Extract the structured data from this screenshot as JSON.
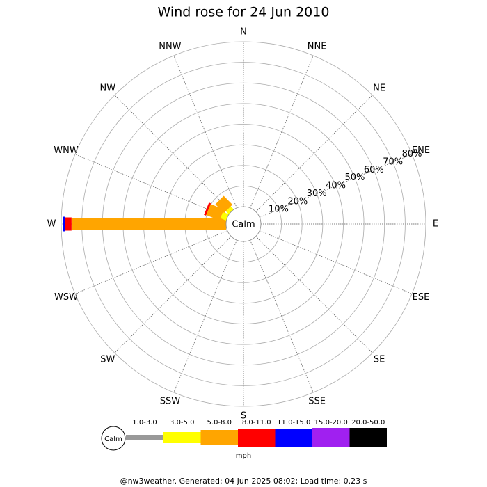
{
  "chart_data": {
    "type": "windrose",
    "title": "Wind rose for 24 Jun 2010",
    "categories": [
      "N",
      "NNE",
      "NE",
      "ENE",
      "E",
      "ESE",
      "SE",
      "SSE",
      "S",
      "SSW",
      "SW",
      "WSW",
      "W",
      "WNW",
      "NW",
      "NNW"
    ],
    "center_label": "Calm",
    "units": "mph",
    "ylim": [
      0,
      80
    ],
    "yticks": [
      {
        "value": 10,
        "label": "10%"
      },
      {
        "value": 20,
        "label": "20%"
      },
      {
        "value": 30,
        "label": "30%"
      },
      {
        "value": 40,
        "label": "40%"
      },
      {
        "value": 50,
        "label": "50%"
      },
      {
        "value": 60,
        "label": "60%"
      },
      {
        "value": 70,
        "label": "70%"
      },
      {
        "value": 80,
        "label": "80%"
      }
    ],
    "series": [
      {
        "name": "1.0-3.0",
        "color": "#999999",
        "values": [
          0,
          0,
          0,
          0,
          0,
          0,
          0,
          0,
          0,
          0,
          0,
          0,
          0,
          0,
          0,
          0
        ]
      },
      {
        "name": "3.0-5.0",
        "color": "#ffff00",
        "values": [
          0,
          0,
          0,
          0,
          0,
          0,
          0,
          0,
          0,
          0,
          0,
          0,
          0,
          3,
          2,
          0
        ]
      },
      {
        "name": "5.0-8.0",
        "color": "#ffa500",
        "values": [
          0,
          0,
          0,
          0,
          0,
          0,
          0,
          0,
          0,
          0,
          0,
          0,
          75,
          7,
          6,
          0
        ]
      },
      {
        "name": "8.0-11.0",
        "color": "#ff0000",
        "values": [
          0,
          0,
          0,
          0,
          0,
          0,
          0,
          0,
          0,
          0,
          0,
          0,
          3,
          1,
          0,
          0
        ]
      },
      {
        "name": "11.0-15.0",
        "color": "#0000ff",
        "values": [
          0,
          0,
          0,
          0,
          0,
          0,
          0,
          0,
          0,
          0,
          0,
          0,
          1,
          0,
          0,
          0
        ]
      },
      {
        "name": "15.0-20.0",
        "color": "#a020f0",
        "values": [
          0,
          0,
          0,
          0,
          0,
          0,
          0,
          0,
          0,
          0,
          0,
          0,
          0,
          0,
          0,
          0
        ]
      },
      {
        "name": "20.0-50.0",
        "color": "#000000",
        "values": [
          0,
          0,
          0,
          0,
          0,
          0,
          0,
          0,
          0,
          0,
          0,
          0,
          0,
          0,
          0,
          0
        ]
      }
    ],
    "footer": "@nw3weather. Generated: 04 Jun 2025 08:02; Load time: 0.23 s"
  }
}
